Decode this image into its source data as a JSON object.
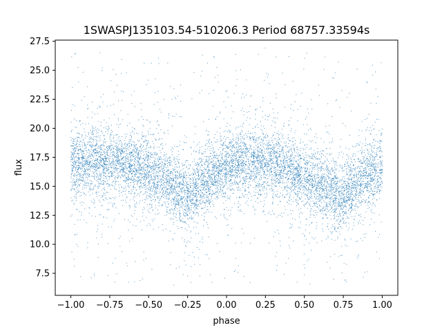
{
  "chart_data": {
    "type": "scatter",
    "title": "1SWASPJ135103.54-510206.3 Period 68757.33594s",
    "xlabel": "phase",
    "ylabel": "flux",
    "xlim": [
      -1.1,
      1.1
    ],
    "ylim": [
      5.6,
      27.6
    ],
    "x_ticks": [
      -1.0,
      -0.75,
      -0.5,
      -0.25,
      0.0,
      0.25,
      0.5,
      0.75,
      1.0
    ],
    "x_tick_labels": [
      "−1.00",
      "−0.75",
      "−0.50",
      "−0.25",
      "0.00",
      "0.25",
      "0.50",
      "0.75",
      "1.00"
    ],
    "y_ticks": [
      7.5,
      10.0,
      12.5,
      15.0,
      17.5,
      20.0,
      22.5,
      25.0,
      27.5
    ],
    "y_tick_labels": [
      "7.5",
      "10.0",
      "12.5",
      "15.0",
      "17.5",
      "20.0",
      "22.5",
      "25.0",
      "27.5"
    ],
    "grid": false,
    "marker_color": "#1f77b4",
    "series": [
      {
        "x": [
          -1.0,
          -0.9,
          -0.8,
          -0.7,
          -0.6,
          -0.5,
          -0.4,
          -0.3,
          -0.25,
          -0.2,
          -0.1,
          0.0,
          0.1,
          0.2,
          0.3,
          0.4,
          0.5,
          0.6,
          0.7,
          0.75,
          0.8,
          0.9,
          1.0
        ],
        "y": [
          16.8,
          16.9,
          17.0,
          17.0,
          16.8,
          16.2,
          15.6,
          14.6,
          14.0,
          14.7,
          16.0,
          16.7,
          17.0,
          17.0,
          16.9,
          16.3,
          15.8,
          15.2,
          14.3,
          13.9,
          14.7,
          16.0,
          16.6
        ]
      }
    ]
  }
}
